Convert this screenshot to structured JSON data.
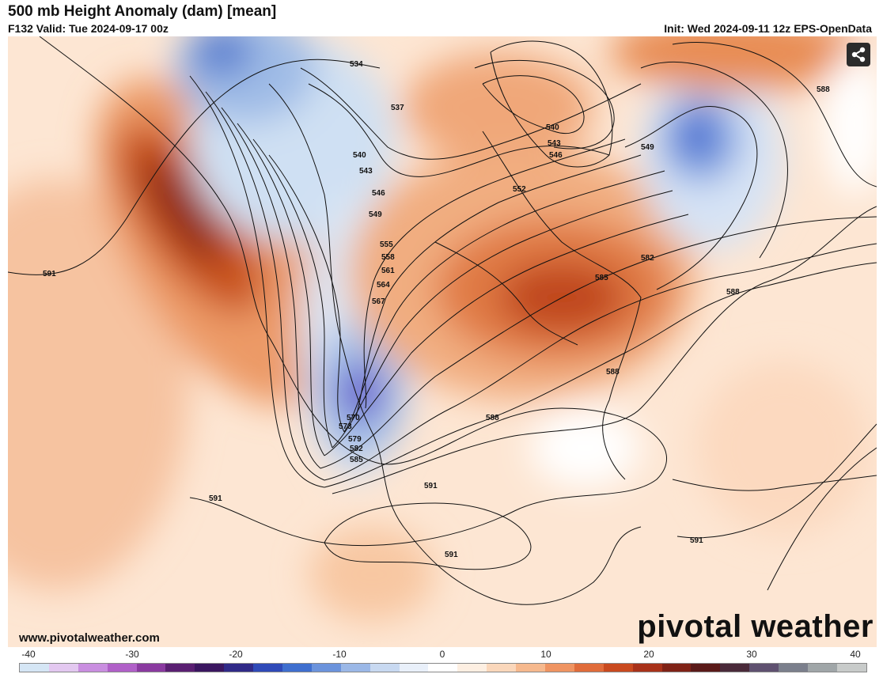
{
  "header": {
    "title": "500 mb Height Anomaly (dam) [mean]",
    "valid": "F132 Valid: Tue 2024-09-17 00z",
    "init": "Init: Wed 2024-09-11 12z EPS-OpenData"
  },
  "map": {
    "contour_labels": [
      "534",
      "537",
      "540",
      "543",
      "546",
      "549",
      "552",
      "555",
      "558",
      "561",
      "564",
      "567",
      "570",
      "573",
      "579",
      "582",
      "585",
      "588",
      "591"
    ]
  },
  "share_button": {
    "icon": "share-icon"
  },
  "footer": {
    "credit": "www.pivotalweather.com",
    "brand": "pivotal weather"
  },
  "colorbar": {
    "labels": [
      "-40",
      "-30",
      "-20",
      "-10",
      "0",
      "10",
      "20",
      "30",
      "40"
    ],
    "colors": [
      "#d5e6f5",
      "#e3c8f0",
      "#c98ee0",
      "#b060c8",
      "#8a3aa0",
      "#5a1f72",
      "#3b1660",
      "#302a88",
      "#2f4ab8",
      "#3f6fcf",
      "#6b93dc",
      "#9bb8e7",
      "#c8d9f1",
      "#e9f0fa",
      "#ffffff",
      "#fdefe2",
      "#fad7bb",
      "#f6b98e",
      "#ef9462",
      "#e06c3b",
      "#c94a1f",
      "#a8321a",
      "#7f2216",
      "#5a1a19",
      "#4a2a3a",
      "#5f5170",
      "#7b7f8c",
      "#a0a6a8",
      "#c8cbca"
    ]
  }
}
